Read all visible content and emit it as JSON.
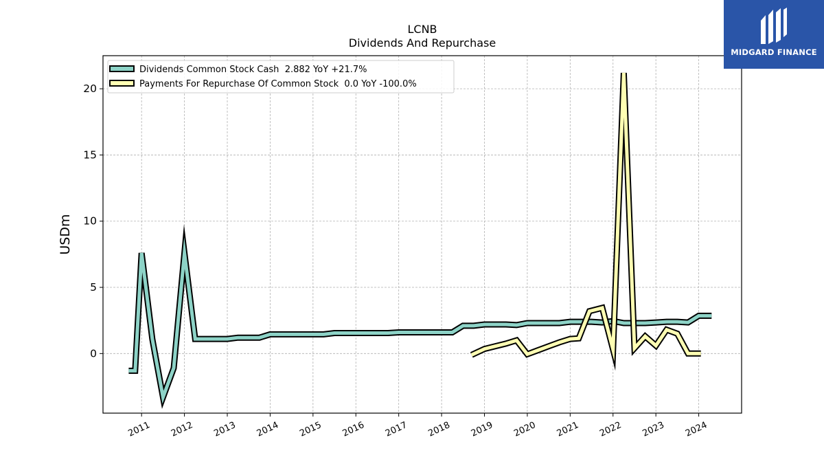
{
  "chart_data": {
    "type": "line",
    "title": "LCNB",
    "subtitle": "Dividends And Repurchase",
    "ylabel": "USDm",
    "xlabel": "",
    "ylim": [
      -4.5,
      22.5
    ],
    "xlim": [
      2010.1,
      2025.0
    ],
    "yticks": [
      0,
      5,
      10,
      15,
      20
    ],
    "xticks": [
      "2011",
      "2012",
      "2013",
      "2014",
      "2015",
      "2016",
      "2017",
      "2018",
      "2019",
      "2020",
      "2021",
      "2022",
      "2023",
      "2024"
    ],
    "grid": true,
    "legend_position": "top-left",
    "series": [
      {
        "name": "Dividends Common Stock Cash  2.882 YoY +21.7%",
        "color": "#8dd3c7",
        "x": [
          2010.7,
          2010.85,
          2011.0,
          2011.25,
          2011.5,
          2011.75,
          2012.0,
          2012.25,
          2012.5,
          2012.75,
          2013.0,
          2013.25,
          2013.5,
          2013.75,
          2014.0,
          2014.25,
          2014.5,
          2014.75,
          2015.0,
          2015.25,
          2015.5,
          2015.75,
          2016.0,
          2016.25,
          2016.5,
          2016.75,
          2017.0,
          2017.25,
          2017.5,
          2017.75,
          2018.0,
          2018.25,
          2018.5,
          2018.75,
          2019.0,
          2019.25,
          2019.5,
          2019.75,
          2020.0,
          2020.25,
          2020.5,
          2020.75,
          2021.0,
          2021.25,
          2021.5,
          2021.75,
          2022.0,
          2022.25,
          2022.5,
          2022.75,
          2023.0,
          2023.25,
          2023.5,
          2023.75,
          2024.0,
          2024.3
        ],
        "values": [
          -1.3,
          -1.3,
          7.6,
          1.1,
          -3.3,
          -1.1,
          7.6,
          1.1,
          1.1,
          1.1,
          1.1,
          1.2,
          1.2,
          1.2,
          1.45,
          1.45,
          1.45,
          1.45,
          1.45,
          1.45,
          1.55,
          1.55,
          1.55,
          1.55,
          1.55,
          1.55,
          1.6,
          1.6,
          1.6,
          1.6,
          1.6,
          1.6,
          2.1,
          2.1,
          2.2,
          2.2,
          2.2,
          2.15,
          2.3,
          2.3,
          2.3,
          2.3,
          2.4,
          2.4,
          2.4,
          2.35,
          2.45,
          2.3,
          2.3,
          2.3,
          2.35,
          2.4,
          2.4,
          2.35,
          2.85,
          2.85
        ]
      },
      {
        "name": "Payments For Repurchase Of Common Stock  0.0 YoY -100.0%",
        "color": "#ffffb3",
        "x": [
          2018.7,
          2019.0,
          2019.25,
          2019.5,
          2019.75,
          2020.0,
          2020.25,
          2020.5,
          2020.75,
          2021.0,
          2021.2,
          2021.45,
          2021.75,
          2022.0,
          2022.25,
          2022.5,
          2022.75,
          2023.0,
          2023.25,
          2023.5,
          2023.75,
          2024.05
        ],
        "values": [
          -0.1,
          0.35,
          0.55,
          0.75,
          1.0,
          -0.05,
          0.25,
          0.55,
          0.85,
          1.1,
          1.15,
          3.2,
          3.45,
          0.3,
          21.2,
          0.4,
          1.3,
          0.6,
          1.8,
          1.5,
          0.0,
          0.0
        ]
      }
    ]
  },
  "logo": {
    "name": "MIDGARD FINANCE"
  }
}
